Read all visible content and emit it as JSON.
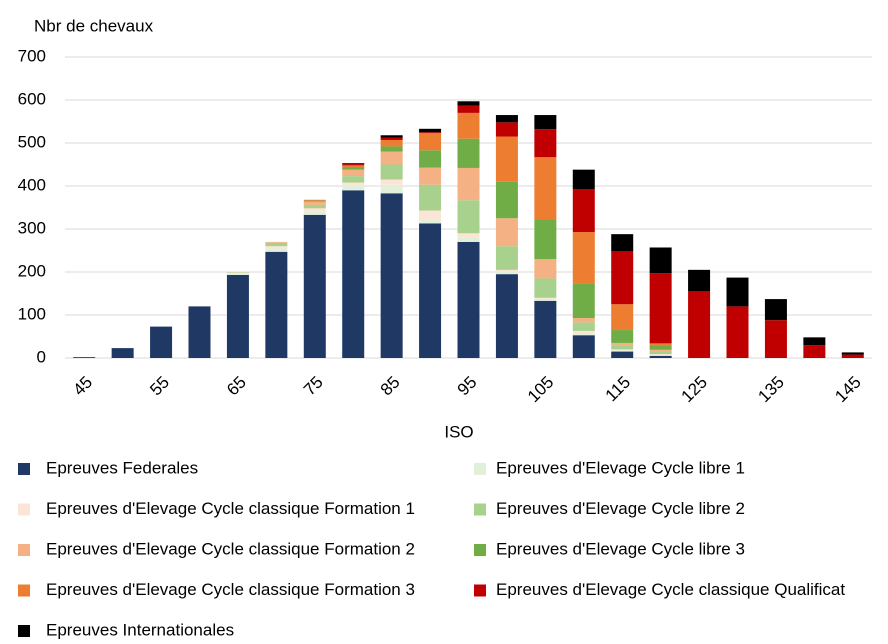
{
  "chart_data": {
    "type": "stacked_bar",
    "y_axis_label": "Nbr de chevaux",
    "x_axis_label": "ISO",
    "categories": [
      "45",
      null,
      "55",
      null,
      "65",
      null,
      "75",
      null,
      "85",
      null,
      "95",
      null,
      "105",
      null,
      "115",
      null,
      "125",
      null,
      "135",
      null,
      "145"
    ],
    "ylim": [
      0,
      700
    ],
    "yticks": [
      0,
      100,
      200,
      300,
      400,
      500,
      600,
      700
    ],
    "grid": true,
    "series": [
      {
        "name": "Epreuves Federales",
        "color": "#1f3864",
        "values": [
          2,
          23,
          73,
          120,
          193,
          247,
          333,
          390,
          383,
          313,
          270,
          195,
          133,
          53,
          15,
          5,
          0,
          0,
          0,
          0,
          0
        ]
      },
      {
        "name": "Epreuves d'Elevage Cycle libre 1",
        "color": "#e2efda",
        "values": [
          0,
          0,
          0,
          0,
          4,
          8,
          8,
          10,
          20,
          10,
          10,
          5,
          5,
          5,
          3,
          2,
          0,
          0,
          0,
          0,
          0
        ]
      },
      {
        "name": "Epreuves d'Elevage Cycle classique Formation 1",
        "color": "#fce4d6",
        "values": [
          0,
          0,
          0,
          0,
          2,
          5,
          7,
          8,
          12,
          20,
          10,
          5,
          2,
          5,
          2,
          2,
          0,
          0,
          0,
          0,
          0
        ]
      },
      {
        "name": "Epreuves d'Elevage Cycle libre 2",
        "color": "#a9d18e",
        "values": [
          0,
          0,
          0,
          0,
          1,
          8,
          8,
          15,
          35,
          60,
          77,
          55,
          45,
          20,
          10,
          5,
          0,
          0,
          0,
          0,
          0
        ]
      },
      {
        "name": "Epreuves d'Elevage Cycle classique Formation 2",
        "color": "#f4b183",
        "values": [
          0,
          0,
          0,
          0,
          0,
          2,
          8,
          15,
          30,
          40,
          75,
          65,
          45,
          10,
          5,
          5,
          0,
          0,
          0,
          0,
          0
        ]
      },
      {
        "name": "Epreuves d'Elevage Cycle libre 3",
        "color": "#70ad47",
        "values": [
          0,
          0,
          0,
          0,
          0,
          0,
          2,
          5,
          12,
          40,
          68,
          85,
          92,
          80,
          30,
          10,
          0,
          0,
          0,
          0,
          0
        ]
      },
      {
        "name": "Epreuves d'Elevage Cycle classique Formation 3",
        "color": "#ed7d31",
        "values": [
          0,
          0,
          0,
          0,
          0,
          0,
          2,
          5,
          15,
          40,
          60,
          105,
          145,
          120,
          60,
          5,
          0,
          0,
          0,
          0,
          0
        ]
      },
      {
        "name": "Epreuves d'Elevage Cycle classique Qualificat",
        "color": "#c00000",
        "values": [
          0,
          0,
          0,
          0,
          0,
          0,
          0,
          3,
          5,
          2,
          17,
          33,
          65,
          100,
          123,
          163,
          155,
          120,
          88,
          30,
          8
        ]
      },
      {
        "name": "Epreuves Internationales",
        "color": "#000000",
        "values": [
          0,
          0,
          0,
          0,
          0,
          0,
          0,
          2,
          6,
          8,
          10,
          17,
          33,
          45,
          40,
          60,
          50,
          67,
          49,
          18,
          5
        ]
      }
    ]
  }
}
